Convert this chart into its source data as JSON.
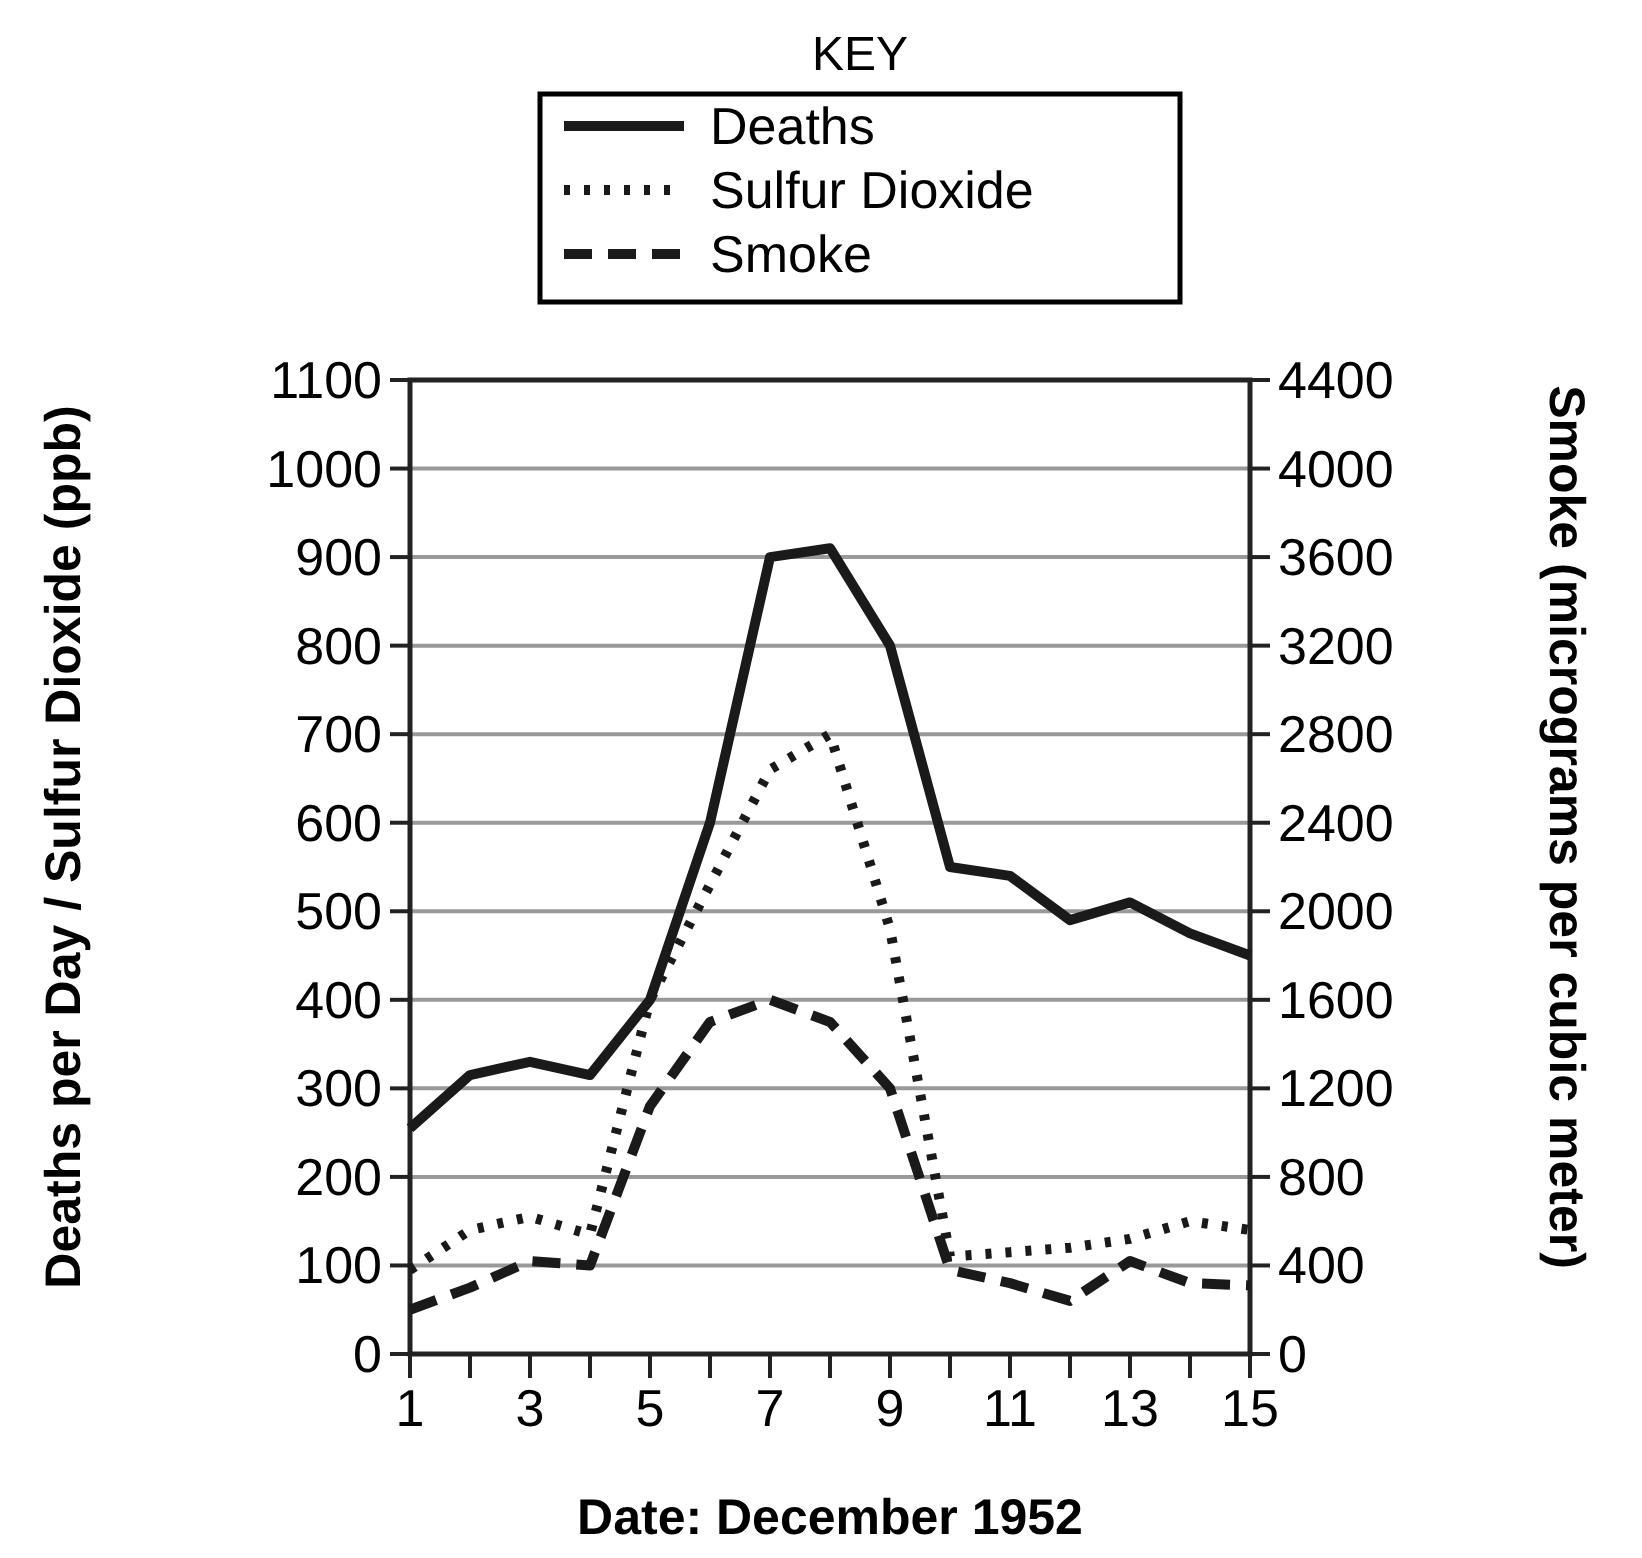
{
  "chart_data": {
    "type": "line",
    "legend_title": "KEY",
    "legend": "top",
    "xlabel": "Date: December 1952",
    "ylabel": "Deaths per Day / Sulfur Dioxide (ppb)",
    "y2label": "Smoke (micrograms per cubic meter)",
    "x": [
      1,
      2,
      3,
      4,
      5,
      6,
      7,
      8,
      9,
      10,
      11,
      12,
      13,
      14,
      15
    ],
    "xlim": [
      1,
      15
    ],
    "xticks": [
      1,
      {
        "value": 2,
        "label": null
      },
      3,
      {
        "value": 4,
        "label": null
      },
      5,
      {
        "value": 6,
        "label": null
      },
      7,
      {
        "value": 8,
        "label": null
      },
      9,
      {
        "value": 10,
        "label": null
      },
      11,
      {
        "value": 12,
        "label": null
      },
      13,
      {
        "value": 14,
        "label": null
      },
      15
    ],
    "ylim": [
      0,
      1100
    ],
    "yticks": [
      0,
      100,
      200,
      300,
      400,
      500,
      600,
      700,
      800,
      900,
      1000,
      1100
    ],
    "y2lim": [
      0,
      4400
    ],
    "y2ticks": [
      0,
      400,
      800,
      1200,
      1600,
      2000,
      2400,
      2800,
      3200,
      3600,
      4000,
      4400
    ],
    "grid": "y",
    "marker": "none",
    "series": [
      {
        "name": "Deaths",
        "color": "#1a1a1a",
        "line_style": "solid",
        "values": [
          255,
          315,
          330,
          315,
          400,
          600,
          900,
          910,
          800,
          550,
          540,
          490,
          510,
          475,
          450
        ]
      },
      {
        "name": "Sulfur Dioxide",
        "color": "#1a1a1a",
        "line_style": "dotted",
        "values": [
          95,
          140,
          155,
          135,
          400,
          530,
          660,
          700,
          480,
          110,
          115,
          120,
          130,
          150,
          140
        ]
      },
      {
        "name": "Smoke",
        "color": "#1a1a1a",
        "line_style": "dashed",
        "axis": "y2",
        "values": [
          200,
          300,
          420,
          400,
          1120,
          1500,
          1600,
          1500,
          1200,
          380,
          320,
          240,
          420,
          320,
          310
        ]
      }
    ]
  }
}
